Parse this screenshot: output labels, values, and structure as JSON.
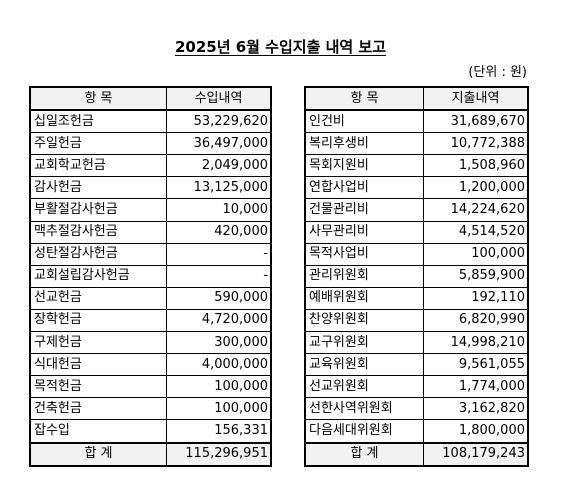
{
  "title": "2025년 6월 수입지출 내역 보고",
  "unit_note": "(단위 : 원)",
  "income": {
    "header_item": "항 목",
    "header_amount": "수입내역",
    "rows": [
      {
        "item": "십일조헌금",
        "amount": "53,229,620"
      },
      {
        "item": "주일헌금",
        "amount": "36,497,000"
      },
      {
        "item": "교회학교헌금",
        "amount": "2,049,000"
      },
      {
        "item": "감사헌금",
        "amount": "13,125,000"
      },
      {
        "item": "부활절감사헌금",
        "amount": "10,000"
      },
      {
        "item": "맥추절감사헌금",
        "amount": "420,000"
      },
      {
        "item": "성탄절감사헌금",
        "amount": "-"
      },
      {
        "item": "교회설립감사헌금",
        "amount": "-"
      },
      {
        "item": "선교헌금",
        "amount": "590,000"
      },
      {
        "item": "장학헌금",
        "amount": "4,720,000"
      },
      {
        "item": "구제헌금",
        "amount": "300,000"
      },
      {
        "item": "식대헌금",
        "amount": "4,000,000"
      },
      {
        "item": "목적헌금",
        "amount": "100,000"
      },
      {
        "item": "건축헌금",
        "amount": "100,000"
      },
      {
        "item": "잡수입",
        "amount": "156,331"
      }
    ],
    "total_label": "합 계",
    "total_amount": "115,296,951"
  },
  "expense": {
    "header_item": "항 목",
    "header_amount": "지출내역",
    "rows": [
      {
        "item": "인건비",
        "amount": "31,689,670"
      },
      {
        "item": "복리후생비",
        "amount": "10,772,388"
      },
      {
        "item": "목회지원비",
        "amount": "1,508,960"
      },
      {
        "item": "연합사업비",
        "amount": "1,200,000"
      },
      {
        "item": "건물관리비",
        "amount": "14,224,620"
      },
      {
        "item": "사무관리비",
        "amount": "4,514,520"
      },
      {
        "item": "목적사업비",
        "amount": "100,000"
      },
      {
        "item": "관리위원회",
        "amount": "5,859,900"
      },
      {
        "item": "예배위원회",
        "amount": "192,110"
      },
      {
        "item": "찬양위원회",
        "amount": "6,820,990"
      },
      {
        "item": "교구위원회",
        "amount": "14,998,210"
      },
      {
        "item": "교육위원회",
        "amount": "9,561,055"
      },
      {
        "item": "선교위원회",
        "amount": "1,774,000"
      },
      {
        "item": "선한사역위원회",
        "amount": "3,162,820"
      },
      {
        "item": "다음세대위원회",
        "amount": "1,800,000"
      }
    ],
    "total_label": "합 계",
    "total_amount": "108,179,243"
  }
}
